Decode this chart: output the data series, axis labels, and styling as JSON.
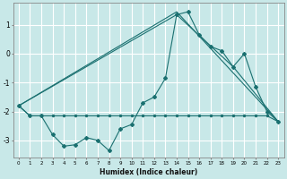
{
  "xlabel": "Humidex (Indice chaleur)",
  "background_color": "#c8e8e8",
  "line_color": "#1a7070",
  "grid_color": "#ffffff",
  "xlim": [
    -0.5,
    23.5
  ],
  "ylim": [
    -3.6,
    1.75
  ],
  "yticks": [
    -3,
    -2,
    -1,
    0,
    1
  ],
  "xticks": [
    0,
    1,
    2,
    3,
    4,
    5,
    6,
    7,
    8,
    9,
    10,
    11,
    12,
    13,
    14,
    15,
    16,
    17,
    18,
    19,
    20,
    21,
    22,
    23
  ],
  "line1_x": [
    0,
    1,
    2,
    3,
    4,
    5,
    6,
    7,
    8,
    9,
    10,
    11,
    12,
    13,
    14,
    15,
    16,
    17,
    18,
    19,
    20,
    21,
    22,
    23
  ],
  "line1_y": [
    -1.8,
    -2.15,
    -2.15,
    -2.15,
    -2.15,
    -2.15,
    -2.15,
    -2.15,
    -2.15,
    -2.15,
    -2.15,
    -2.15,
    -2.15,
    -2.15,
    -2.15,
    -2.15,
    -2.15,
    -2.15,
    -2.15,
    -2.15,
    -2.15,
    -2.15,
    -2.15,
    -2.35
  ],
  "line2_x": [
    0,
    1,
    2,
    3,
    4,
    5,
    6,
    7,
    8,
    9,
    10,
    11,
    12,
    13,
    14,
    15,
    16,
    17,
    18,
    19,
    20,
    21,
    22,
    23
  ],
  "line2_y": [
    -1.8,
    -2.15,
    -2.15,
    -2.8,
    -3.2,
    -3.15,
    -2.9,
    -3.0,
    -3.35,
    -2.6,
    -2.45,
    -1.7,
    -1.5,
    -0.85,
    1.35,
    1.45,
    0.65,
    0.25,
    0.1,
    -0.45,
    0.0,
    -1.15,
    -2.0,
    -2.35
  ],
  "line3_x": [
    0,
    14,
    19,
    23
  ],
  "line3_y": [
    -1.8,
    1.35,
    -0.45,
    -2.35
  ],
  "line4_x": [
    0,
    14,
    23
  ],
  "line4_y": [
    -1.8,
    1.45,
    -2.35
  ]
}
